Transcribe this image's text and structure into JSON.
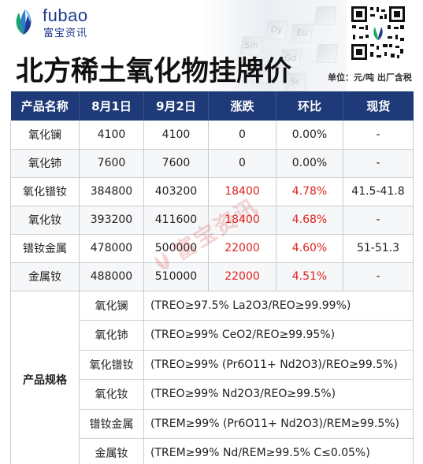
{
  "brand": {
    "name_en": "fubao",
    "name_cn": "富宝资讯",
    "colors": {
      "primary": "#1f3b8c",
      "green": "#1aa36b",
      "header_bg": "#1e3a78",
      "up": "#e0221e"
    }
  },
  "title": "北方稀土氧化物挂牌价",
  "unit_note": "单位：元/吨  出厂含税",
  "deco_elements": [
    "Sm",
    "Dy",
    "Eu",
    "Gd",
    "Sc"
  ],
  "table": {
    "columns": [
      "产品名称",
      "8月1日",
      "9月2日",
      "涨跌",
      "环比",
      "现货"
    ],
    "rows": [
      {
        "name": "氧化镧",
        "aug1": "4100",
        "sep2": "4100",
        "change": "0",
        "pct": "0.00%",
        "spot": "-",
        "up": false
      },
      {
        "name": "氧化铈",
        "aug1": "7600",
        "sep2": "7600",
        "change": "0",
        "pct": "0.00%",
        "spot": "-",
        "up": false
      },
      {
        "name": "氧化镨钕",
        "aug1": "384800",
        "sep2": "403200",
        "change": "18400",
        "pct": "4.78%",
        "spot": "41.5-41.8",
        "up": true
      },
      {
        "name": "氧化钕",
        "aug1": "393200",
        "sep2": "411600",
        "change": "18400",
        "pct": "4.68%",
        "spot": "-",
        "up": true
      },
      {
        "name": "镨钕金属",
        "aug1": "478000",
        "sep2": "500000",
        "change": "22000",
        "pct": "4.60%",
        "spot": "51-51.3",
        "up": true
      },
      {
        "name": "金属钕",
        "aug1": "488000",
        "sep2": "510000",
        "change": "22000",
        "pct": "4.51%",
        "spot": "-",
        "up": true
      }
    ]
  },
  "specs": {
    "label": "产品规格",
    "items": [
      {
        "name": "氧化镧",
        "value": "(TREO≥97.5%   La2O3/REO≥99.99%)"
      },
      {
        "name": "氧化铈",
        "value": "(TREO≥99%   CeO2/REO≥99.95%)"
      },
      {
        "name": "氧化镨钕",
        "value": "(TREO≥99% (Pr6O11+ Nd2O3)/REO≥99.5%)"
      },
      {
        "name": "氧化钕",
        "value": "(TREO≥99% Nd2O3/REO≥99.5%)"
      },
      {
        "name": "镨钕金属",
        "value": "(TREM≥99% (Pr6O11+ Nd2O3)/REM≥99.5%)"
      },
      {
        "name": "金属钕",
        "value": "(TREM≥99% Nd/REM≥99.5%   C≤0.05%)"
      }
    ]
  },
  "watermark": "富宝资讯"
}
